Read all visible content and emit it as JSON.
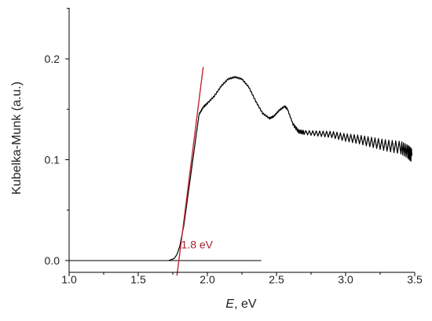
{
  "chart_data": {
    "type": "line",
    "title": "",
    "xlabel": {
      "italic": "E",
      "rest": ", eV"
    },
    "ylabel": "Kubelka-Munk (a.u.)",
    "xlim": [
      1.0,
      3.5
    ],
    "ylim": [
      -0.012,
      0.25
    ],
    "x_ticks": [
      1.0,
      1.5,
      2.0,
      2.5,
      3.0,
      3.5
    ],
    "x_tick_labels": [
      "1.0",
      "1.5",
      "2.0",
      "2.5",
      "3.0",
      "3.5"
    ],
    "y_ticks": [
      0.0,
      0.1,
      0.2
    ],
    "y_tick_labels": [
      "0.0",
      "0.1",
      "0.2"
    ],
    "grid": false,
    "series": [
      {
        "color": "#000000",
        "x": [
          1.72,
          1.76,
          1.78,
          1.8,
          1.83,
          1.86,
          1.89,
          1.92,
          1.94,
          1.97,
          2.0,
          2.05,
          2.1,
          2.15,
          2.2,
          2.25,
          2.3,
          2.35,
          2.4,
          2.45,
          2.48,
          2.52,
          2.56,
          2.58,
          2.62,
          2.66,
          2.7,
          2.8,
          2.9,
          3.0,
          3.1,
          3.2,
          3.3,
          3.4,
          3.45,
          3.48
        ],
        "y": [
          0.0,
          0.002,
          0.006,
          0.014,
          0.035,
          0.065,
          0.095,
          0.125,
          0.145,
          0.152,
          0.156,
          0.163,
          0.173,
          0.18,
          0.182,
          0.18,
          0.172,
          0.158,
          0.146,
          0.141,
          0.143,
          0.149,
          0.153,
          0.15,
          0.135,
          0.128,
          0.127,
          0.126,
          0.125,
          0.122,
          0.12,
          0.117,
          0.114,
          0.112,
          0.108,
          0.104
        ]
      }
    ],
    "baseline": {
      "color": "#000000",
      "x": [
        1.0,
        2.39
      ],
      "y": [
        0.0,
        0.0
      ]
    },
    "tangent": {
      "color": "#c0272d",
      "x": [
        1.78,
        1.97
      ],
      "y": [
        -0.015,
        0.192
      ]
    },
    "annotations": [
      {
        "text": "1.8 eV",
        "x": 1.81,
        "y": 0.012,
        "color": "#a52030"
      }
    ],
    "noise_after_x": 2.62
  }
}
